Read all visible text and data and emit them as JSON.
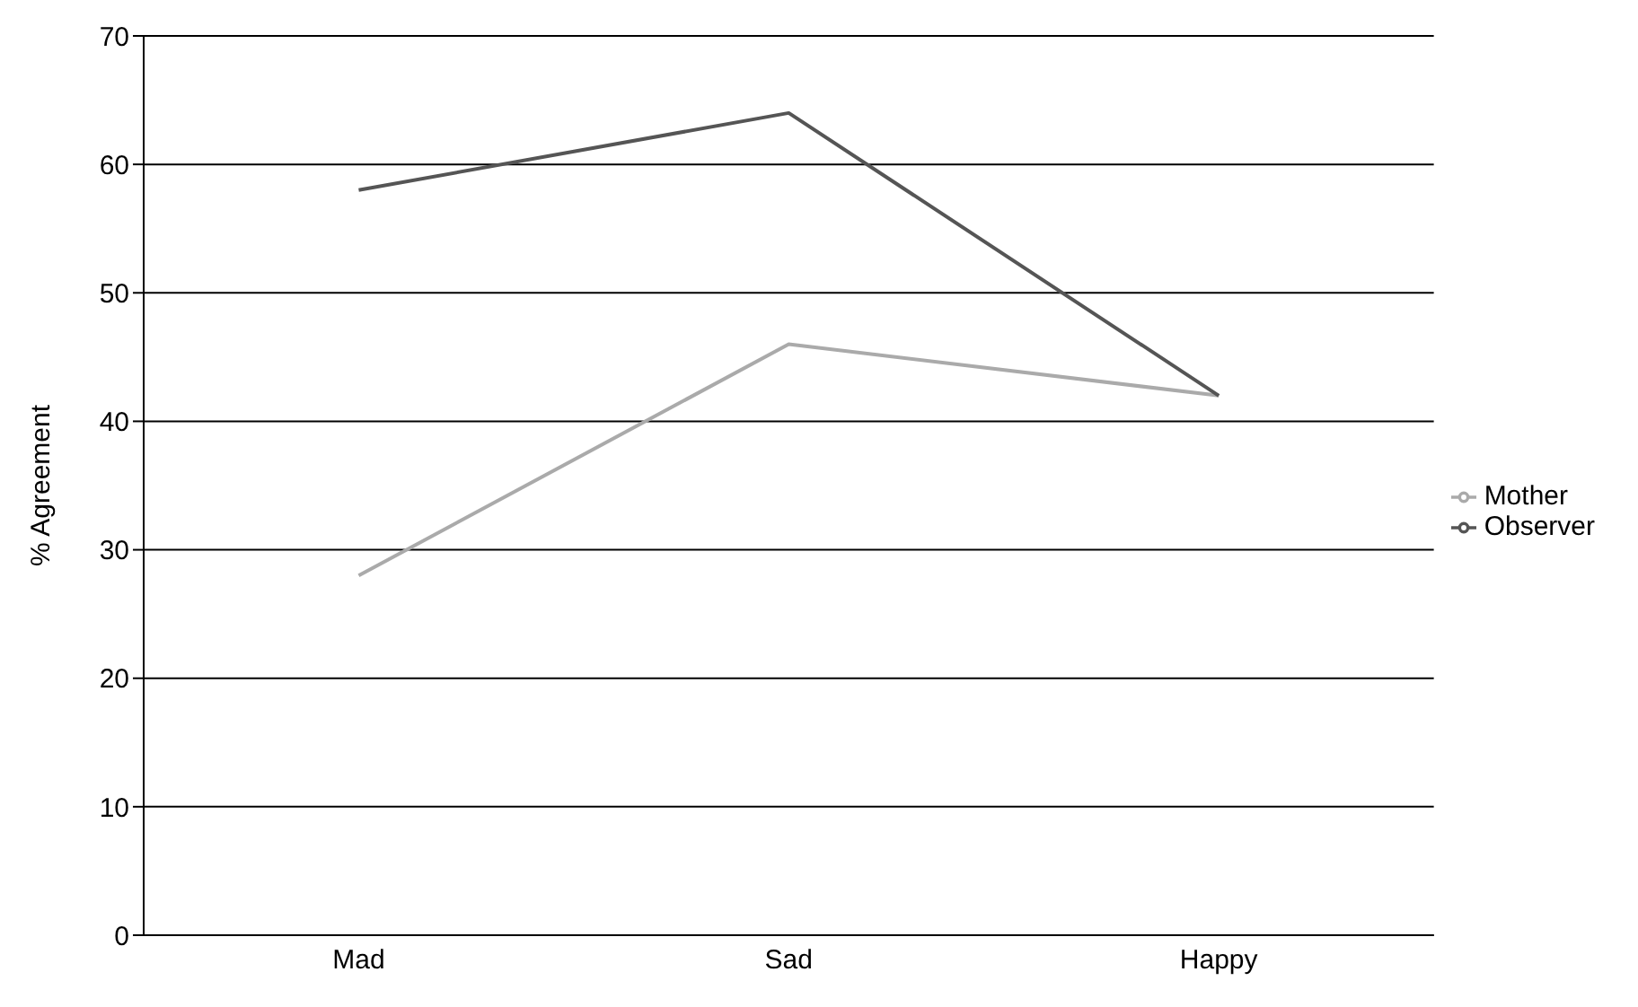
{
  "chart_data": {
    "type": "line",
    "ylabel": "% Agreement",
    "categories": [
      "Mad",
      "Sad",
      "Happy"
    ],
    "series": [
      {
        "name": "Mother",
        "color": "#aaaaaa",
        "values": [
          28,
          46,
          42
        ]
      },
      {
        "name": "Observer",
        "color": "#555555",
        "values": [
          58,
          64,
          42
        ]
      }
    ],
    "ylim": [
      0,
      70
    ],
    "yticks": [
      0,
      10,
      20,
      30,
      40,
      50,
      60,
      70
    ],
    "grid": "y",
    "legend": "right",
    "marker": "none",
    "line_style": "solid"
  }
}
